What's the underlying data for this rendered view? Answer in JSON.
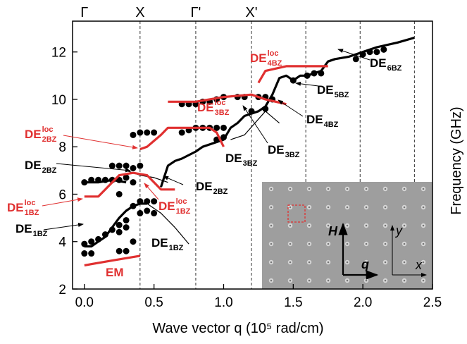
{
  "chart_data": {
    "type": "scatter-line",
    "xlabel": "Wave vector q (10⁵ rad/cm)",
    "ylabel": "Frequency (GHz)",
    "xlim": [
      -0.085,
      2.5
    ],
    "ylim": [
      2,
      13.3
    ],
    "xticks": [
      {
        "value": 0,
        "label": "0.0"
      },
      0.5,
      {
        "value": 1,
        "label": "1.0"
      },
      1.5,
      {
        "value": 2,
        "label": "2.0"
      },
      2.5
    ],
    "yticks": [
      2,
      4,
      6,
      8,
      10,
      12
    ],
    "top_labels": [
      {
        "value": 0,
        "label": "Γ"
      },
      {
        "value": 0.4,
        "label": "X"
      },
      {
        "value": 0.8,
        "label": "Γ'"
      },
      {
        "value": 1.2,
        "label": "X'"
      }
    ],
    "vlines": [
      0.4,
      0.8,
      1.2,
      1.59,
      1.98,
      2.37
    ],
    "series": [
      {
        "style": "scatter",
        "color": "#000000",
        "x": [
          0,
          0.05,
          0.1,
          0.15,
          0.2,
          0.25,
          0.3,
          0.35,
          0.4,
          0.45,
          0.5,
          0,
          0.05,
          0.25,
          0.3,
          0.25,
          0.3,
          0.35,
          0.4,
          0.45,
          0.5,
          0,
          0.05,
          0.1,
          0.15,
          0.2,
          0.25,
          0.3,
          0.35,
          0.2,
          0.25,
          0.3,
          0.35,
          0.4,
          0.25,
          0.35,
          0.4,
          0.45,
          0.5,
          0.7,
          0.75,
          0.8,
          0.85,
          0.9,
          0.95,
          1.0,
          0.95,
          1.0,
          0.7,
          0.75,
          0.8,
          0.85,
          0.9,
          0.95,
          1.0,
          1.1,
          1.15,
          1.25,
          1.3,
          1.35,
          1.2,
          1.3,
          1.5,
          1.6,
          1.65,
          1.7,
          1.95,
          2.0,
          2.05,
          2.1,
          2.15
        ],
        "y": [
          3.9,
          4.0,
          4.1,
          4.3,
          4.5,
          4.7,
          4.9,
          5.5,
          5.7,
          5.7,
          5.7,
          3.5,
          3.5,
          3.6,
          3.6,
          4.4,
          4.6,
          4.0,
          5.2,
          5.3,
          5.2,
          6.5,
          6.6,
          6.6,
          6.6,
          6.6,
          6.6,
          6.7,
          6.5,
          7.2,
          7.2,
          7.2,
          7.1,
          7.2,
          6.0,
          8.5,
          8.6,
          8.6,
          8.6,
          8.6,
          8.7,
          8.8,
          8.8,
          8.8,
          8.8,
          8.8,
          8.3,
          8.4,
          9.8,
          9.8,
          9.8,
          9.9,
          9.9,
          10.0,
          10.1,
          10.1,
          10.1,
          10.1,
          10.1,
          10.0,
          9.5,
          9.6,
          10.8,
          11.0,
          11.1,
          11.1,
          11.7,
          11.9,
          12.0,
          12.0,
          12.1
        ]
      },
      {
        "style": "thick",
        "color": "#000000",
        "x": [
          0,
          0.05,
          0.1,
          0.15,
          0.2,
          0.25,
          0.3,
          0.35,
          0.4,
          0.45,
          null,
          0,
          0.1,
          0.2,
          0.3,
          null,
          0.55,
          0.6,
          0.65,
          0.7,
          0.8,
          0.85,
          0.95,
          1.0,
          1.05,
          1.1,
          1.15,
          1.25,
          1.3,
          1.35,
          1.4,
          1.45,
          1.5,
          1.55,
          1.6,
          1.7,
          1.75,
          1.8,
          1.9,
          2.0,
          2.1,
          2.25,
          2.37
        ],
        "y": [
          3.8,
          3.8,
          4.0,
          4.2,
          4.6,
          5.0,
          5.3,
          5.5,
          5.6,
          5.6,
          null,
          6.5,
          6.5,
          6.6,
          6.5,
          null,
          6.3,
          7.2,
          7.4,
          7.5,
          7.8,
          8.0,
          8.2,
          8.3,
          8.8,
          9.0,
          9.3,
          9.5,
          9.7,
          10.2,
          10.9,
          11.0,
          10.8,
          11.0,
          11.0,
          11.2,
          11.6,
          11.7,
          11.8,
          12.0,
          12.2,
          12.4,
          12.6
        ]
      },
      {
        "style": "thin",
        "color": "#000000",
        "x": [
          0.45,
          0.55,
          0.65,
          0.75,
          null,
          0.3,
          0.4,
          0.5,
          0.6,
          null,
          1.05,
          1.15,
          1.3,
          1.4
        ],
        "y": [
          5.6,
          5.2,
          4.6,
          3.9,
          null,
          7.0,
          6.8,
          6.7,
          6.5,
          null,
          8.3,
          8.5,
          9.5,
          9.0
        ]
      },
      {
        "style": "thick",
        "color": "#e03030",
        "x": [
          0,
          0.2,
          0.4,
          null,
          0,
          0.1,
          0.15,
          0.25,
          0.35,
          0.45,
          0.55,
          0.65,
          null,
          0.4,
          0.45,
          0.55,
          0.6,
          0.9,
          0.95,
          1.0,
          null,
          0.6,
          0.8,
          1.0,
          1.2,
          1.3,
          1.45,
          null,
          1.25,
          1.3,
          1.45,
          1.75
        ],
        "y": [
          3.0,
          3.2,
          3.4,
          null,
          5.9,
          5.9,
          6.2,
          6.8,
          6.9,
          6.8,
          6.2,
          6.2,
          null,
          7.9,
          8.0,
          8.5,
          8.8,
          8.8,
          8.6,
          8.0,
          null,
          9.9,
          9.9,
          10.1,
          10.2,
          10.0,
          9.8,
          null,
          10.7,
          11.2,
          11.4,
          11.4
        ]
      }
    ],
    "annotations": [
      {
        "text": "EM",
        "color": "#e03030"
      },
      {
        "text": "DE",
        "sub": "1BZ",
        "sup": "loc",
        "color": "#e03030"
      },
      {
        "text": "DE",
        "sub": "1BZ",
        "color": "#000000"
      },
      {
        "text": "DE",
        "sub": "2BZ",
        "color": "#000000"
      },
      {
        "text": "DE",
        "sub": "2BZ",
        "sup": "loc",
        "color": "#e03030"
      },
      {
        "text": "DE",
        "sub": "2BZ",
        "color": "#000000"
      },
      {
        "text": "DE",
        "sub": "1BZ",
        "sup": "loc",
        "color": "#e03030"
      },
      {
        "text": "DE",
        "sub": "1BZ",
        "color": "#000000"
      },
      {
        "text": "DE",
        "sub": "3BZ",
        "sup": "loc",
        "color": "#e03030"
      },
      {
        "text": "DE",
        "sub": "3BZ",
        "color": "#000000"
      },
      {
        "text": "DE",
        "sub": "3BZ",
        "color": "#000000"
      },
      {
        "text": "DE",
        "sub": "4BZ",
        "sup": "loc",
        "color": "#e03030"
      },
      {
        "text": "DE",
        "sub": "4BZ",
        "color": "#000000"
      },
      {
        "text": "DE",
        "sub": "5BZ",
        "color": "#000000"
      },
      {
        "text": "DE",
        "sub": "6BZ",
        "color": "#000000"
      }
    ],
    "inset_labels": [
      "H",
      "q",
      "y",
      "x"
    ]
  }
}
